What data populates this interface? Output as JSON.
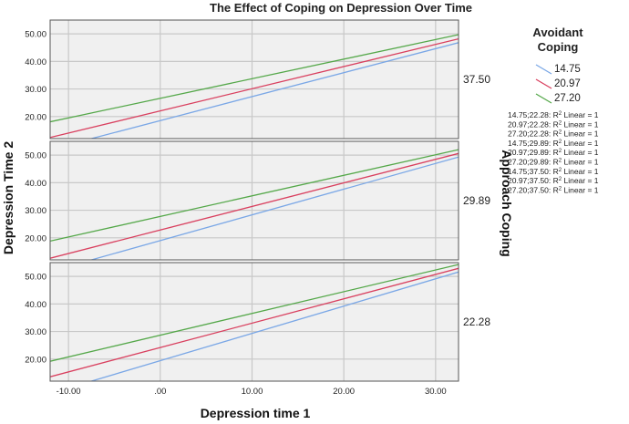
{
  "chart_data": {
    "type": "line",
    "title": "The Effect of Coping on Depression Over Time",
    "xlabel": "Depression time 1",
    "ylabel": "Depression Time 2",
    "xlim": [
      -12,
      32.5
    ],
    "x_ticks": [
      "-10.00",
      ".00",
      "10.00",
      "20.00",
      "30.00"
    ],
    "x_tick_values": [
      -10,
      0,
      10,
      20,
      30
    ],
    "ylim": [
      12,
      55
    ],
    "y_ticks": [
      "20.00",
      "30.00",
      "40.00",
      "50.00"
    ],
    "y_tick_values": [
      20,
      30,
      40,
      50
    ],
    "grid": true,
    "facet_label": "Approach Coping",
    "legend": {
      "title_line1": "Avoidant",
      "title_line2": "Coping",
      "placement": "right",
      "items": [
        {
          "label": "14.75",
          "color": "#7aa7e6"
        },
        {
          "label": "20.97",
          "color": "#d9405f"
        },
        {
          "label": "27.20",
          "color": "#55a84a"
        }
      ],
      "notes": [
        {
          "prefix": "14.75;22.28: R",
          "sup": "2",
          "suffix": " Linear = 1"
        },
        {
          "prefix": "20.97;22.28: R",
          "sup": "2",
          "suffix": " Linear = 1"
        },
        {
          "prefix": "27.20;22.28: R",
          "sup": "2",
          "suffix": " Linear = 1"
        },
        {
          "prefix": "14.75;29.89: R",
          "sup": "2",
          "suffix": " Linear = 1"
        },
        {
          "prefix": "20.97;29.89: R",
          "sup": "2",
          "suffix": " Linear = 1"
        },
        {
          "prefix": "27.20;29.89: R",
          "sup": "2",
          "suffix": " Linear = 1"
        },
        {
          "prefix": "14.75;37.50: R",
          "sup": "2",
          "suffix": " Linear = 1"
        },
        {
          "prefix": "20.97;37.50: R",
          "sup": "2",
          "suffix": " Linear = 1"
        },
        {
          "prefix": "27.20;37.50: R",
          "sup": "2",
          "suffix": " Linear = 1"
        }
      ]
    },
    "panels": [
      {
        "facet": "37.50",
        "series": [
          {
            "name": "14.75",
            "color": "#7aa7e6",
            "x": [
              -7.5,
              32.5
            ],
            "y": [
              12,
              46.8
            ]
          },
          {
            "name": "20.97",
            "color": "#d9405f",
            "x": [
              -12,
              32.5
            ],
            "y": [
              12.4,
              48.2
            ]
          },
          {
            "name": "27.20",
            "color": "#55a84a",
            "x": [
              -12,
              32.5
            ],
            "y": [
              18.1,
              49.7
            ]
          }
        ]
      },
      {
        "facet": "29.89",
        "series": [
          {
            "name": "14.75",
            "color": "#7aa7e6",
            "x": [
              -7.5,
              32.5
            ],
            "y": [
              12,
              49.3
            ]
          },
          {
            "name": "20.97",
            "color": "#d9405f",
            "x": [
              -12,
              32.5
            ],
            "y": [
              12.6,
              50.6
            ]
          },
          {
            "name": "27.20",
            "color": "#55a84a",
            "x": [
              -12,
              32.5
            ],
            "y": [
              18.8,
              52.0
            ]
          }
        ]
      },
      {
        "facet": "22.28",
        "series": [
          {
            "name": "14.75",
            "color": "#7aa7e6",
            "x": [
              -7.5,
              32.5
            ],
            "y": [
              12,
              51.6
            ]
          },
          {
            "name": "20.97",
            "color": "#d9405f",
            "x": [
              -12,
              32.5
            ],
            "y": [
              13.6,
              52.9
            ]
          },
          {
            "name": "27.20",
            "color": "#55a84a",
            "x": [
              -12,
              32.5
            ],
            "y": [
              19.2,
              54.3
            ]
          }
        ]
      }
    ]
  }
}
